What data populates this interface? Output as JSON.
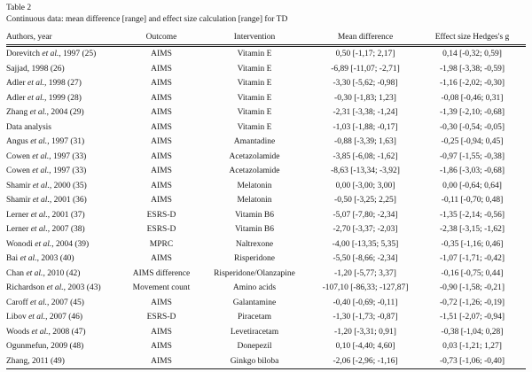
{
  "page": {
    "background": "#fdfdfd",
    "text_color": "#1b1b1b",
    "rule_color": "#1f1f1f"
  },
  "table": {
    "label": "Table 2",
    "caption": "Continuous data: mean difference [range] and effect size calculation [range] for TD",
    "columns": [
      "Authors, year",
      "Outcome",
      "Intervention",
      "Mean difference",
      "Effect size Hedges's g"
    ],
    "rows": [
      [
        "Dorevitch et al., 1997 (25)",
        "AIMS",
        "Vitamin E",
        "0,50 [-1,17; 2,17]",
        "0,14 [-0,32; 0,59]"
      ],
      [
        "Sajjad, 1998 (26)",
        "AIMS",
        "Vitamin E",
        "-6,89 [-11,07; -2,71]",
        "-1,98 [-3,38; -0,59]"
      ],
      [
        "Adler et al., 1998 (27)",
        "AIMS",
        "Vitamin E",
        "-3,30 [-5,62; -0,98]",
        "-1,16 [-2,02; -0,30]"
      ],
      [
        "Adler et al., 1999 (28)",
        "AIMS",
        "Vitamin E",
        "-0,30 [-1,83; 1,23]",
        "-0,08 [-0,46; 0,31]"
      ],
      [
        "Zhang et al., 2004 (29)",
        "AIMS",
        "Vitamin E",
        "-2,31 [-3,38; -1,24]",
        "-1,39 [-2,10; -0,68]"
      ],
      [
        "Data analysis",
        "AIMS",
        "Vitamin E",
        "-1,03 [-1,88; -0,17]",
        "-0,30 [-0,54; -0,05]"
      ],
      [
        "Angus et al., 1997 (31)",
        "AIMS",
        "Amantadine",
        "-0,88 [-3,39; 1,63]",
        "-0,25 [-0,94; 0,45]"
      ],
      [
        "Cowen et al., 1997 (33)",
        "AIMS",
        "Acetazolamide",
        "-3,85 [-6,08; -1,62]",
        "-0,97 [-1,55; -0,38]"
      ],
      [
        "Cowen et al., 1997 (33)",
        "AIMS",
        "Acetazolamide",
        "-8,63 [-13,34; -3,92]",
        "-1,86 [-3,03; -0,68]"
      ],
      [
        "Shamir et al., 2000 (35)",
        "AIMS",
        "Melatonin",
        "0,00 [-3,00; 3,00]",
        "0,00 [-0,64; 0,64]"
      ],
      [
        "Shamir et al., 2001 (36)",
        "AIMS",
        "Melatonin",
        "-0,50 [-3,25; 2,25]",
        "-0,11 [-0,70; 0,48]"
      ],
      [
        "Lerner et al., 2001 (37)",
        "ESRS-D",
        "Vitamin B6",
        "-5,07 [-7,80; -2,34]",
        "-1,35 [-2,14; -0,56]"
      ],
      [
        "Lerner et al., 2007 (38)",
        "ESRS-D",
        "Vitamin B6",
        "-2,70 [-3,37; -2,03]",
        "-2,38 [-3,15; -1,62]"
      ],
      [
        "Wonodi et al., 2004 (39)",
        "MPRC",
        "Naltrexone",
        "-4,00 [-13,35; 5,35]",
        "-0,35 [-1,16; 0,46]"
      ],
      [
        "Bai et al., 2003 (40)",
        "AIMS",
        "Risperidone",
        "-5,50 [-8,66; -2,34]",
        "-1,07 [-1,71; -0,42]"
      ],
      [
        "Chan et al., 2010 (42)",
        "AIMS difference",
        "Risperidone/Olanzapine",
        "-1,20 [-5,77; 3,37]",
        "-0,16 [-0,75; 0,44]"
      ],
      [
        "Richardson et al., 2003 (43)",
        "Movement count",
        "Amino acids",
        "-107,10 [-86,33; -127,87]",
        "-0,90 [-1,58; -0,21]"
      ],
      [
        "Caroff et al., 2007 (45)",
        "AIMS",
        "Galantamine",
        "-0,40 [-0,69; -0,11]",
        "-0,72 [-1,26; -0,19]"
      ],
      [
        "Libov et al., 2007 (46)",
        "ESRS-D",
        "Piracetam",
        "-1,30 [-1,73; -0,87]",
        "-1,51 [-2,07; -0,94]"
      ],
      [
        "Woods et al., 2008 (47)",
        "AIMS",
        "Levetiracetam",
        "-1,20 [-3,31; 0,91]",
        "-0,38 [-1,04; 0,28]"
      ],
      [
        "Ogunmefun, 2009 (48)",
        "AIMS",
        "Donepezil",
        "0,10 [-4,40; 4,60]",
        "0,03 [-1,21; 1,27]"
      ],
      [
        "Zhang, 2011 (49)",
        "AIMS",
        "Ginkgo biloba",
        "-2,06 [-2,96; -1,16]",
        "-0,73 [-1,06; -0,40]"
      ]
    ]
  }
}
